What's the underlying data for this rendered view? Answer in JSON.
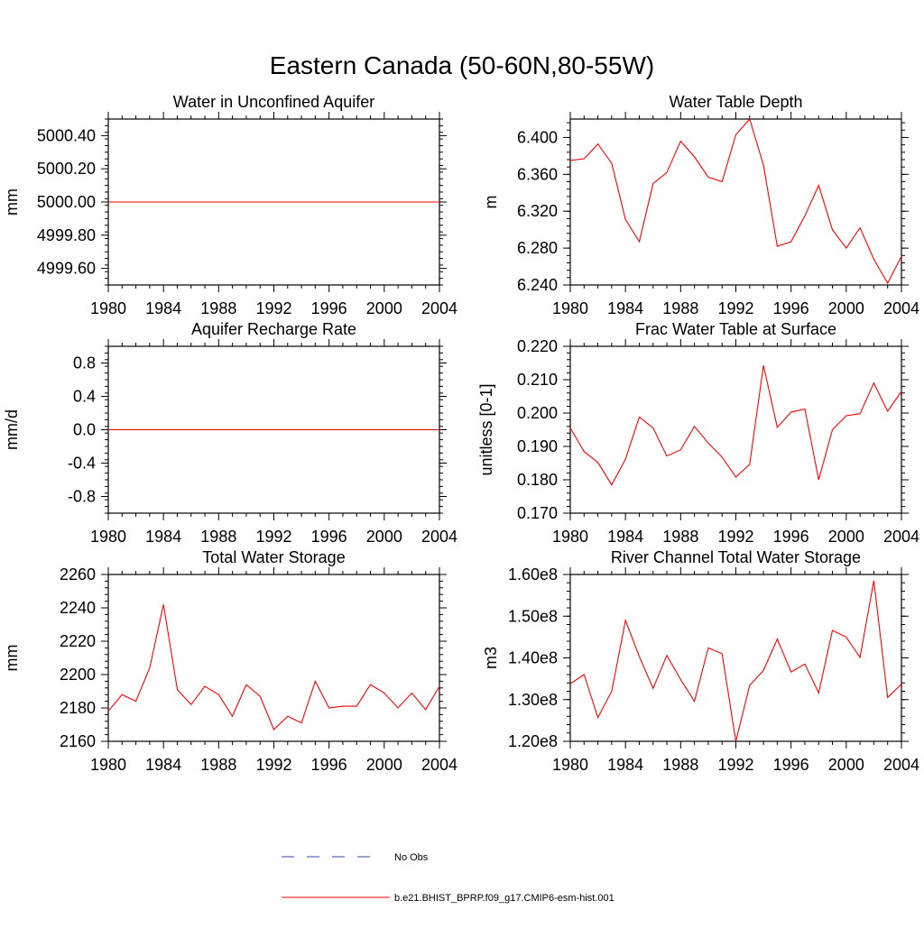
{
  "figure": {
    "title": "Eastern Canada (50-60N,80-55W)"
  },
  "legend": {
    "items": [
      {
        "label": "No Obs",
        "style": "dashed",
        "color": "#3344aa"
      },
      {
        "label": "b.e21.BHIST_BPRP.f09_g17.CMIP6-esm-hist.001",
        "style": "solid",
        "color": "#ff0000"
      }
    ]
  },
  "colors": {
    "series": "#ff0000",
    "axis": "#000000"
  },
  "chart_data": [
    {
      "type": "line",
      "title": "Water in Unconfined Aquifer",
      "ylabel": "mm",
      "xlabel": "",
      "xlim": [
        1980,
        2004
      ],
      "ylim": [
        4999.5,
        5000.5
      ],
      "xticks": [
        1980,
        1984,
        1988,
        1992,
        1996,
        2000,
        2004
      ],
      "xtick_labels": [
        "1980",
        "1984",
        "1988",
        "1992",
        "1996",
        "2000",
        "2004"
      ],
      "yticks": [
        4999.6,
        4999.8,
        5000.0,
        5000.2,
        5000.4
      ],
      "ytick_labels": [
        "4999.60",
        "4999.80",
        "5000.00",
        "5000.20",
        "5000.40"
      ],
      "x": [
        1980,
        2004
      ],
      "series": [
        {
          "name": "b.e21.BHIST_BPRP.f09_g17.CMIP6-esm-hist.001",
          "values": [
            5000.0,
            5000.0
          ]
        }
      ]
    },
    {
      "type": "line",
      "title": "Water Table Depth",
      "ylabel": "m",
      "xlabel": "",
      "xlim": [
        1980,
        2004
      ],
      "ylim": [
        6.24,
        6.42
      ],
      "xticks": [
        1980,
        1984,
        1988,
        1992,
        1996,
        2000,
        2004
      ],
      "xtick_labels": [
        "1980",
        "1984",
        "1988",
        "1992",
        "1996",
        "2000",
        "2004"
      ],
      "yticks": [
        6.24,
        6.28,
        6.32,
        6.36,
        6.4
      ],
      "ytick_labels": [
        "6.240",
        "6.280",
        "6.320",
        "6.360",
        "6.400"
      ],
      "x": [
        1980,
        1981,
        1982,
        1983,
        1984,
        1985,
        1986,
        1987,
        1988,
        1989,
        1990,
        1991,
        1992,
        1993,
        1994,
        1995,
        1996,
        1997,
        1998,
        1999,
        2000,
        2001,
        2002,
        2003,
        2004
      ],
      "series": [
        {
          "name": "b.e21.BHIST_BPRP.f09_g17.CMIP6-esm-hist.001",
          "values": [
            6.375,
            6.377,
            6.393,
            6.372,
            6.311,
            6.287,
            6.35,
            6.362,
            6.396,
            6.379,
            6.357,
            6.352,
            6.403,
            6.42,
            6.37,
            6.282,
            6.287,
            6.315,
            6.348,
            6.3,
            6.28,
            6.302,
            6.268,
            6.242,
            6.271
          ]
        }
      ]
    },
    {
      "type": "line",
      "title": "Aquifer Recharge Rate",
      "ylabel": "mm/d",
      "xlabel": "",
      "xlim": [
        1980,
        2004
      ],
      "ylim": [
        -1.0,
        1.0
      ],
      "xticks": [
        1980,
        1984,
        1988,
        1992,
        1996,
        2000,
        2004
      ],
      "xtick_labels": [
        "1980",
        "1984",
        "1988",
        "1992",
        "1996",
        "2000",
        "2004"
      ],
      "yticks": [
        -0.8,
        -0.4,
        0.0,
        0.4,
        0.8
      ],
      "ytick_labels": [
        "-0.8",
        "-0.4",
        "0.0",
        "0.4",
        "0.8"
      ],
      "x": [
        1980,
        2004
      ],
      "series": [
        {
          "name": "b.e21.BHIST_BPRP.f09_g17.CMIP6-esm-hist.001",
          "values": [
            0.0,
            0.0
          ]
        }
      ]
    },
    {
      "type": "line",
      "title": "Frac Water Table at Surface",
      "ylabel": "unitless [0-1]",
      "xlabel": "",
      "xlim": [
        1980,
        2004
      ],
      "ylim": [
        0.17,
        0.22
      ],
      "xticks": [
        1980,
        1984,
        1988,
        1992,
        1996,
        2000,
        2004
      ],
      "xtick_labels": [
        "1980",
        "1984",
        "1988",
        "1992",
        "1996",
        "2000",
        "2004"
      ],
      "yticks": [
        0.17,
        0.18,
        0.19,
        0.2,
        0.21,
        0.22
      ],
      "ytick_labels": [
        "0.170",
        "0.180",
        "0.190",
        "0.200",
        "0.210",
        "0.220"
      ],
      "x": [
        1980,
        1981,
        1982,
        1983,
        1984,
        1985,
        1986,
        1987,
        1988,
        1989,
        1990,
        1991,
        1992,
        1993,
        1994,
        1995,
        1996,
        1997,
        1998,
        1999,
        2000,
        2001,
        2002,
        2003,
        2004
      ],
      "series": [
        {
          "name": "b.e21.BHIST_BPRP.f09_g17.CMIP6-esm-hist.001",
          "values": [
            0.1955,
            0.1885,
            0.1852,
            0.1785,
            0.1862,
            0.1988,
            0.1955,
            0.1871,
            0.189,
            0.196,
            0.191,
            0.1868,
            0.1808,
            0.1846,
            0.2143,
            0.1957,
            0.2003,
            0.2012,
            0.18,
            0.195,
            0.1992,
            0.1998,
            0.209,
            0.2005,
            0.2065
          ]
        }
      ]
    },
    {
      "type": "line",
      "title": "Total Water Storage",
      "ylabel": "mm",
      "xlabel": "",
      "xlim": [
        1980,
        2004
      ],
      "ylim": [
        2160,
        2260
      ],
      "xticks": [
        1980,
        1984,
        1988,
        1992,
        1996,
        2000,
        2004
      ],
      "xtick_labels": [
        "1980",
        "1984",
        "1988",
        "1992",
        "1996",
        "2000",
        "2004"
      ],
      "yticks": [
        2160,
        2180,
        2200,
        2220,
        2240,
        2260
      ],
      "ytick_labels": [
        "2160",
        "2180",
        "2200",
        "2220",
        "2240",
        "2260"
      ],
      "x": [
        1980,
        1981,
        1982,
        1983,
        1984,
        1985,
        1986,
        1987,
        1988,
        1989,
        1990,
        1991,
        1992,
        1993,
        1994,
        1995,
        1996,
        1997,
        1998,
        1999,
        2000,
        2001,
        2002,
        2003,
        2004
      ],
      "series": [
        {
          "name": "b.e21.BHIST_BPRP.f09_g17.CMIP6-esm-hist.001",
          "values": [
            2178,
            2188,
            2184,
            2204,
            2242,
            2191,
            2182,
            2193,
            2188,
            2175,
            2194,
            2187,
            2167,
            2175,
            2171,
            2196,
            2180,
            2181,
            2181,
            2194,
            2189,
            2180,
            2189,
            2179,
            2193
          ]
        }
      ]
    },
    {
      "type": "line",
      "title": "River Channel Total Water Storage",
      "ylabel": "m3",
      "xlabel": "",
      "xlim": [
        1980,
        2004
      ],
      "ylim": [
        120000000,
        160000000
      ],
      "xticks": [
        1980,
        1984,
        1988,
        1992,
        1996,
        2000,
        2004
      ],
      "xtick_labels": [
        "1980",
        "1984",
        "1988",
        "1992",
        "1996",
        "2000",
        "2004"
      ],
      "yticks": [
        120000000,
        130000000,
        140000000,
        150000000,
        160000000
      ],
      "ytick_labels": [
        "1.20e8",
        "1.30e8",
        "1.40e8",
        "1.50e8",
        "1.60e8"
      ],
      "x": [
        1980,
        1981,
        1982,
        1983,
        1984,
        1985,
        1986,
        1987,
        1988,
        1989,
        1990,
        1991,
        1992,
        1993,
        1994,
        1995,
        1996,
        1997,
        1998,
        1999,
        2000,
        2001,
        2002,
        2003,
        2004
      ],
      "series": [
        {
          "name": "b.e21.BHIST_BPRP.f09_g17.CMIP6-esm-hist.001",
          "values": [
            133800000,
            136000000,
            125700000,
            132000000,
            149000000,
            140300000,
            132700000,
            140600000,
            134800000,
            129600000,
            142400000,
            141000000,
            120000000,
            133400000,
            137000000,
            144500000,
            136600000,
            138500000,
            131600000,
            146600000,
            145000000,
            140100000,
            158500000,
            130500000,
            133700000
          ]
        }
      ]
    }
  ]
}
